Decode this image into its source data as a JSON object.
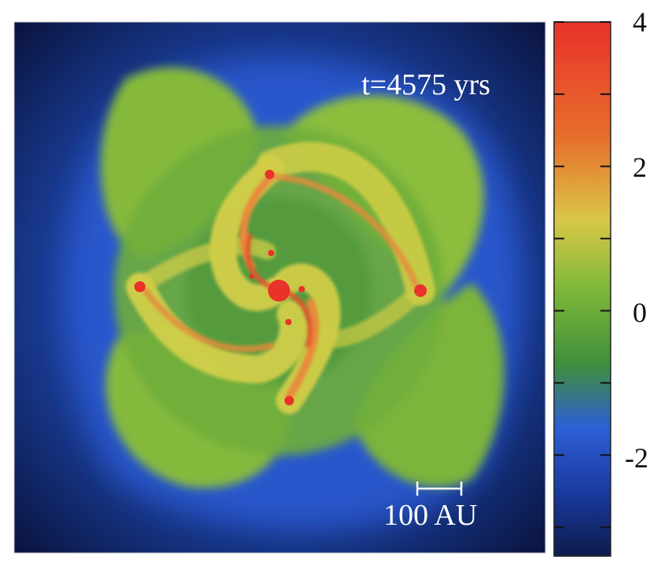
{
  "figure": {
    "time_label": "t=4575 yrs",
    "scale_bar_label": "100 AU"
  },
  "colorbar": {
    "tick_labels": [
      "4",
      "2",
      "0",
      "-2"
    ],
    "range": [
      -3.4,
      4.0
    ],
    "colors": {
      "top": "#e8322a",
      "orange": "#e7702c",
      "yellow": "#d6d23f",
      "green": "#5fa437",
      "dark_green": "#3f8f3b",
      "blue": "#2d5fd6",
      "navy": "#0e1b4a"
    }
  },
  "palette": {
    "background": "#0a1440",
    "outer_glow": "#2757d0",
    "disk_green": "#7fb83a",
    "arm_yellow": "#d8d24a",
    "arm_orange": "#e88a3a",
    "core_red": "#e73a32"
  }
}
